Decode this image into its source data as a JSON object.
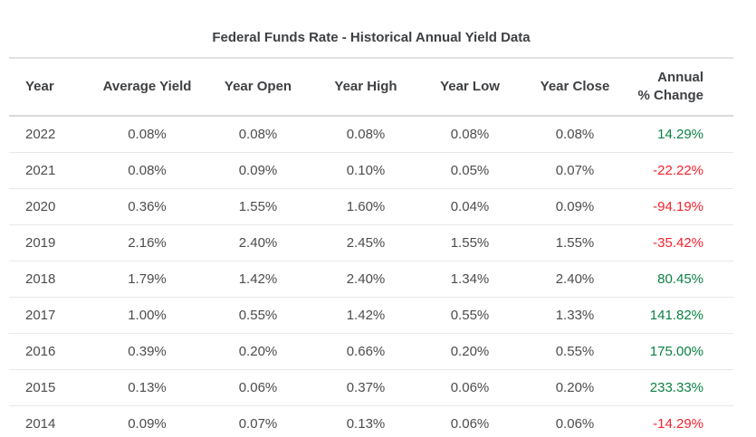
{
  "page_title": "Federal Funds Rate - Historical Annual Yield Data",
  "colors": {
    "positive_change": "#0b8043",
    "negative_change": "#f5222d",
    "header_text": "#3e4043",
    "body_text": "#4c4c4c"
  },
  "table": {
    "columns": [
      "Year",
      "Average Yield",
      "Year Open",
      "Year High",
      "Year Low",
      "Year Close",
      "Annual % Change"
    ],
    "annual_header": {
      "line1": "Annual",
      "line2": "% Change"
    },
    "rows": [
      {
        "year": "2022",
        "average_yield": "0.08%",
        "year_open": "0.08%",
        "year_high": "0.08%",
        "year_low": "0.08%",
        "year_close": "0.08%",
        "annual_change": "14.29%"
      },
      {
        "year": "2021",
        "average_yield": "0.08%",
        "year_open": "0.09%",
        "year_high": "0.10%",
        "year_low": "0.05%",
        "year_close": "0.07%",
        "annual_change": "-22.22%"
      },
      {
        "year": "2020",
        "average_yield": "0.36%",
        "year_open": "1.55%",
        "year_high": "1.60%",
        "year_low": "0.04%",
        "year_close": "0.09%",
        "annual_change": "-94.19%"
      },
      {
        "year": "2019",
        "average_yield": "2.16%",
        "year_open": "2.40%",
        "year_high": "2.45%",
        "year_low": "1.55%",
        "year_close": "1.55%",
        "annual_change": "-35.42%"
      },
      {
        "year": "2018",
        "average_yield": "1.79%",
        "year_open": "1.42%",
        "year_high": "2.40%",
        "year_low": "1.34%",
        "year_close": "2.40%",
        "annual_change": "80.45%"
      },
      {
        "year": "2017",
        "average_yield": "1.00%",
        "year_open": "0.55%",
        "year_high": "1.42%",
        "year_low": "0.55%",
        "year_close": "1.33%",
        "annual_change": "141.82%"
      },
      {
        "year": "2016",
        "average_yield": "0.39%",
        "year_open": "0.20%",
        "year_high": "0.66%",
        "year_low": "0.20%",
        "year_close": "0.55%",
        "annual_change": "175.00%"
      },
      {
        "year": "2015",
        "average_yield": "0.13%",
        "year_open": "0.06%",
        "year_high": "0.37%",
        "year_low": "0.06%",
        "year_close": "0.20%",
        "annual_change": "233.33%"
      },
      {
        "year": "2014",
        "average_yield": "0.09%",
        "year_open": "0.07%",
        "year_high": "0.13%",
        "year_low": "0.06%",
        "year_close": "0.06%",
        "annual_change": "-14.29%"
      }
    ]
  },
  "chart_data": {
    "type": "table",
    "title": "Federal Funds Rate - Historical Annual Yield Data",
    "columns": [
      "Year",
      "Average Yield",
      "Year Open",
      "Year High",
      "Year Low",
      "Year Close",
      "Annual % Change"
    ],
    "rows": [
      [
        2022,
        0.08,
        0.08,
        0.08,
        0.08,
        0.08,
        14.29
      ],
      [
        2021,
        0.08,
        0.09,
        0.1,
        0.05,
        0.07,
        -22.22
      ],
      [
        2020,
        0.36,
        1.55,
        1.6,
        0.04,
        0.09,
        -94.19
      ],
      [
        2019,
        2.16,
        2.4,
        2.45,
        1.55,
        1.55,
        -35.42
      ],
      [
        2018,
        1.79,
        1.42,
        2.4,
        1.34,
        2.4,
        80.45
      ],
      [
        2017,
        1.0,
        0.55,
        1.42,
        0.55,
        1.33,
        141.82
      ],
      [
        2016,
        0.39,
        0.2,
        0.66,
        0.2,
        0.55,
        175.0
      ],
      [
        2015,
        0.13,
        0.06,
        0.37,
        0.06,
        0.2,
        233.33
      ],
      [
        2014,
        0.09,
        0.07,
        0.13,
        0.06,
        0.06,
        -14.29
      ]
    ],
    "units": "percent",
    "positive_change_color": "#0b8043",
    "negative_change_color": "#f5222d"
  }
}
